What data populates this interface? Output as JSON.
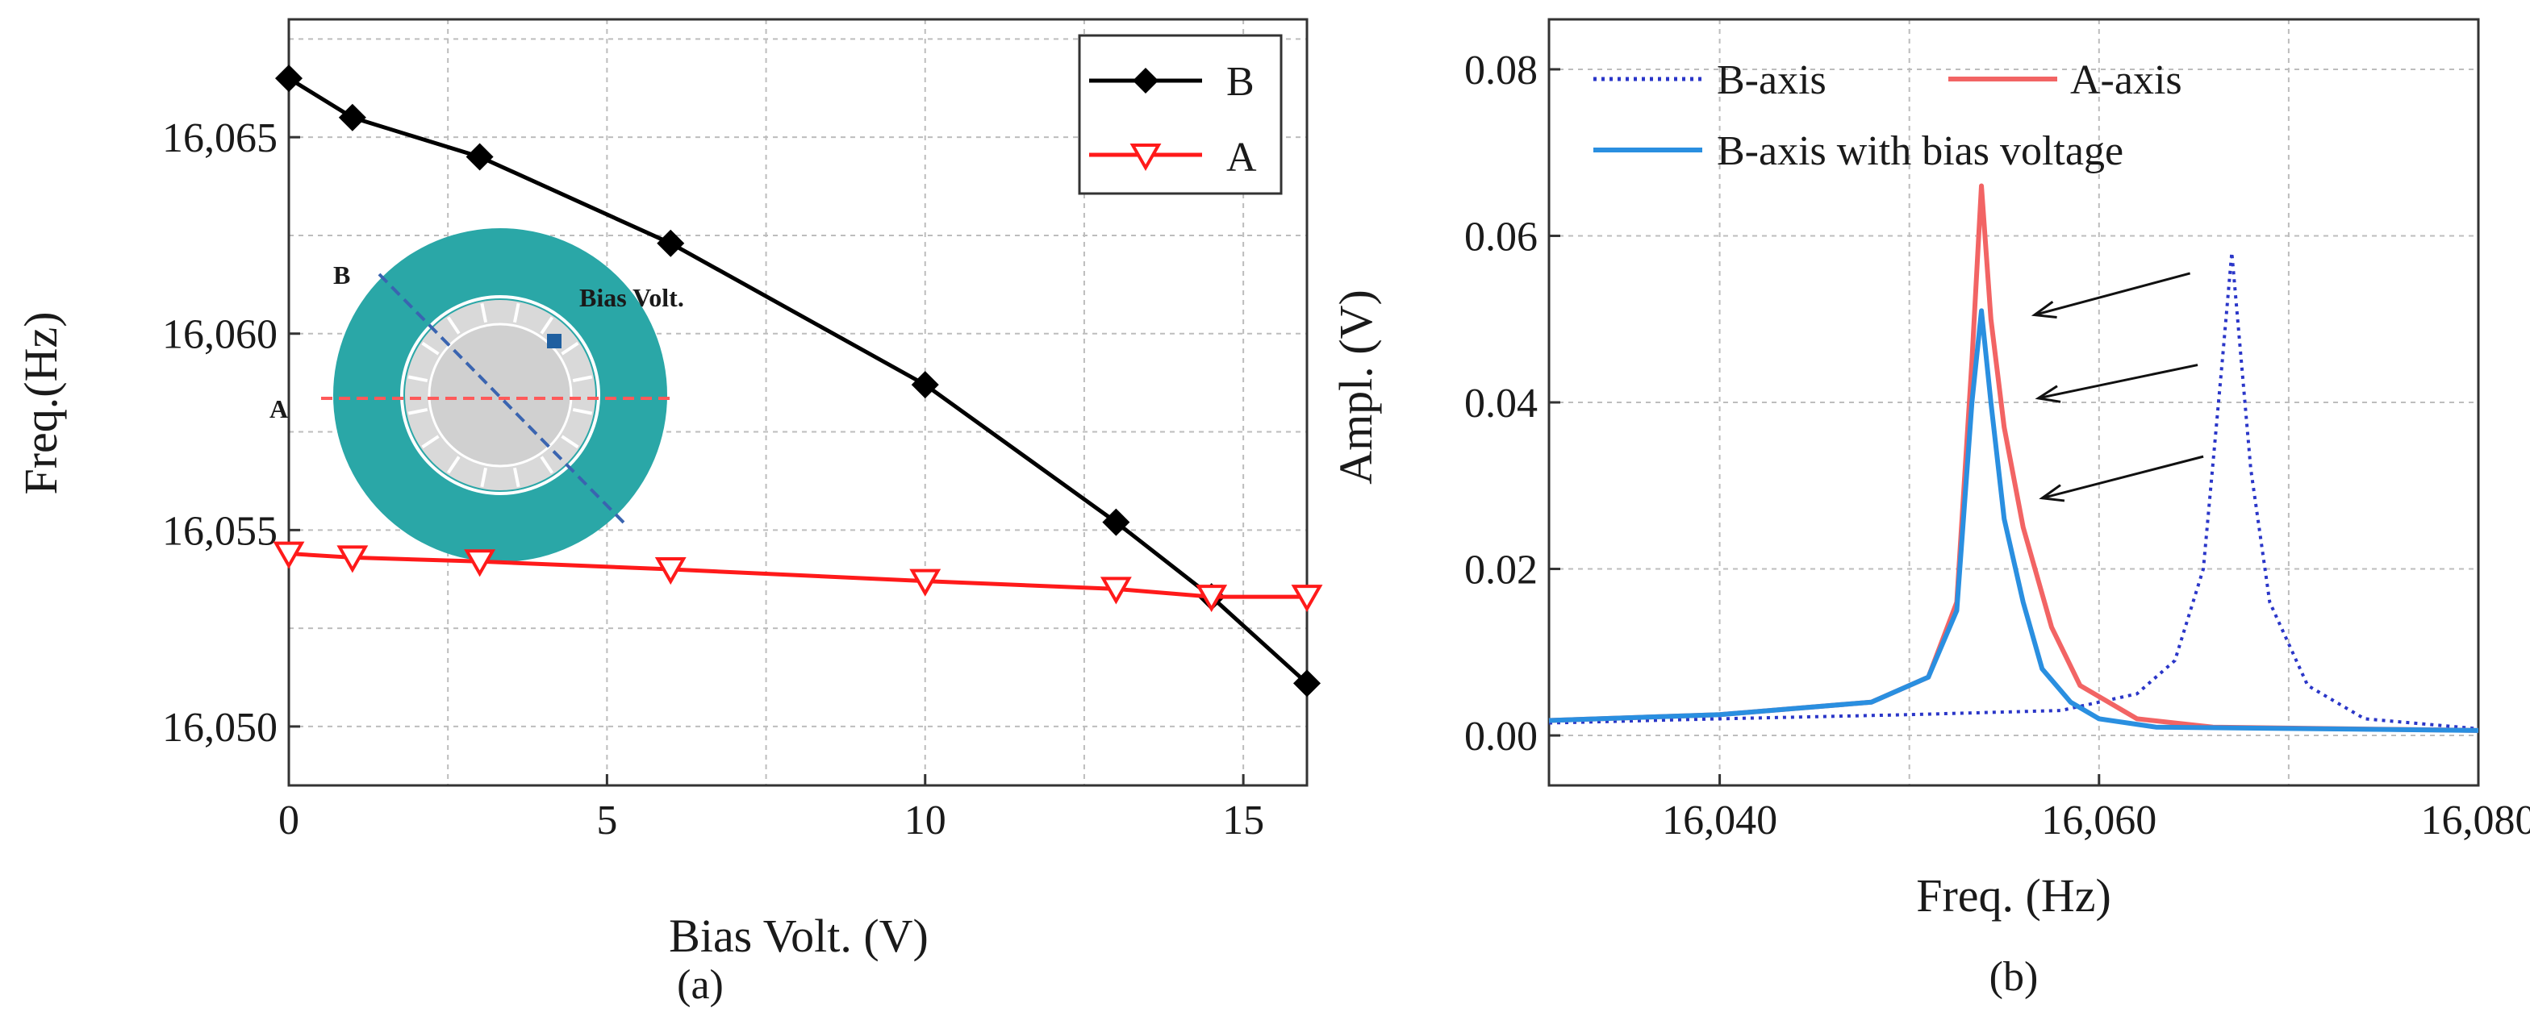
{
  "chart_data": [
    {
      "type": "line",
      "panel_label": "(a)",
      "xlabel": "Bias Volt. (V)",
      "ylabel": "Freq.(Hz)",
      "xlim": [
        0,
        16
      ],
      "ylim": [
        16048.5,
        16068
      ],
      "xticks": [
        0,
        5,
        10,
        15
      ],
      "xtick_labels": [
        "0",
        "5",
        "10",
        "15"
      ],
      "yticks": [
        16050,
        16055,
        16060,
        16065
      ],
      "ytick_labels": [
        "16,050",
        "16,055",
        "16,060",
        "16,065"
      ],
      "grid": true,
      "legend_position": "top-right",
      "series": [
        {
          "name": "B",
          "color": "#000000",
          "marker": "diamond",
          "x": [
            0,
            1,
            3,
            6,
            10,
            13,
            14.5,
            16
          ],
          "y": [
            16066.5,
            16065.5,
            16064.5,
            16062.3,
            16058.7,
            16055.2,
            16053.3,
            16051.1
          ]
        },
        {
          "name": "A",
          "color": "#ff1a1a",
          "marker": "triangle-down",
          "x": [
            0,
            1,
            3,
            6,
            10,
            13,
            14.5,
            16
          ],
          "y": [
            16054.4,
            16054.3,
            16054.2,
            16054.0,
            16053.7,
            16053.5,
            16053.3,
            16053.3
          ]
        }
      ],
      "inset": {
        "labels": {
          "b": "B",
          "a": "A",
          "bias": "Bias Volt."
        },
        "colors": {
          "ring": "#2aa7a7",
          "disk": "#d9d9d9",
          "a_axis": "#ff5a5a",
          "b_axis": "#3a64b0"
        }
      }
    },
    {
      "type": "line",
      "panel_label": "(b)",
      "xlabel": "Freq. (Hz)",
      "ylabel": "Ampl. (V)",
      "xlim": [
        16031,
        16080
      ],
      "ylim": [
        -0.006,
        0.086
      ],
      "xticks": [
        16040,
        16060,
        16080
      ],
      "xtick_labels": [
        "16,040",
        "16,060",
        "16,080"
      ],
      "yticks": [
        0.0,
        0.02,
        0.04,
        0.06,
        0.08
      ],
      "ytick_labels": [
        "0.00",
        "0.02",
        "0.04",
        "0.06",
        "0.08"
      ],
      "grid": true,
      "legend_position": "top",
      "series": [
        {
          "name": "B-axis",
          "color": "#2a36c8",
          "style": "dotted",
          "x": [
            16031,
            16040,
            16050,
            16058,
            16062,
            16064,
            16065.5,
            16066.5,
            16067,
            16067.5,
            16068,
            16069,
            16071,
            16074,
            16080
          ],
          "y": [
            0.0015,
            0.002,
            0.0025,
            0.003,
            0.005,
            0.009,
            0.02,
            0.045,
            0.058,
            0.045,
            0.032,
            0.016,
            0.006,
            0.002,
            0.0008
          ]
        },
        {
          "name": "A-axis",
          "color": "#f26464",
          "style": "solid",
          "x": [
            16031,
            16040,
            16048,
            16051,
            16052.5,
            16053.3,
            16053.8,
            16054.3,
            16055,
            16056,
            16057.5,
            16059,
            16062,
            16066,
            16080
          ],
          "y": [
            0.0018,
            0.0025,
            0.004,
            0.007,
            0.016,
            0.045,
            0.066,
            0.05,
            0.037,
            0.025,
            0.013,
            0.006,
            0.002,
            0.001,
            0.0006
          ]
        },
        {
          "name": "B-axis with bias voltage",
          "color": "#2a8fe0",
          "style": "solid",
          "x": [
            16031,
            16040,
            16048,
            16051,
            16052.5,
            16053.3,
            16053.8,
            16054.3,
            16055,
            16056,
            16057,
            16058.5,
            16060,
            16063,
            16080
          ],
          "y": [
            0.0018,
            0.0025,
            0.004,
            0.007,
            0.015,
            0.04,
            0.051,
            0.04,
            0.026,
            0.016,
            0.008,
            0.004,
            0.002,
            0.001,
            0.0006
          ]
        }
      ],
      "arrows": [
        {
          "from": [
            16064.8,
            0.0555
          ],
          "to": [
            16056.6,
            0.0505
          ]
        },
        {
          "from": [
            16065.2,
            0.0445
          ],
          "to": [
            16056.8,
            0.0405
          ]
        },
        {
          "from": [
            16065.5,
            0.0335
          ],
          "to": [
            16057.0,
            0.0285
          ]
        }
      ]
    }
  ]
}
